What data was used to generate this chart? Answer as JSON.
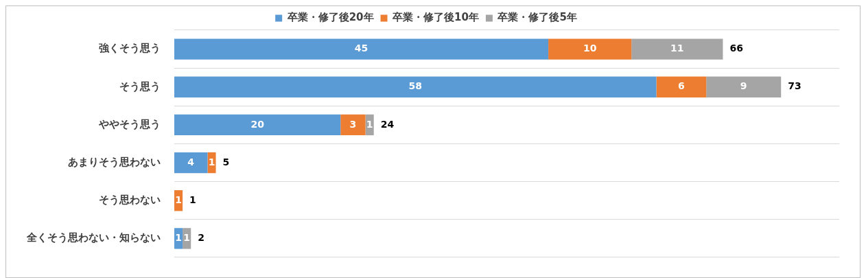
{
  "chart_data": {
    "type": "bar",
    "orientation": "horizontal",
    "stacked": true,
    "categories": [
      "強くそう思う",
      "そう思う",
      "ややそう思う",
      "あまりそう思わない",
      "そう思わない",
      "全くそう思わない・知らない"
    ],
    "series": [
      {
        "name": "卒業・修了後20年",
        "color": "#5b9bd5",
        "values": [
          45,
          58,
          20,
          4,
          null,
          1
        ]
      },
      {
        "name": "卒業・修了後10年",
        "color": "#ed7d31",
        "values": [
          10,
          6,
          3,
          1,
          1,
          null
        ]
      },
      {
        "name": "卒業・修了後5年",
        "color": "#a5a5a5",
        "values": [
          11,
          9,
          1,
          null,
          null,
          1
        ]
      }
    ],
    "totals": [
      "66",
      "73",
      "24",
      "5",
      "1",
      "2"
    ],
    "xlim": [
      0,
      80
    ],
    "tick_labels": "y",
    "grid": "y",
    "legend": "top",
    "data_labels": true
  }
}
